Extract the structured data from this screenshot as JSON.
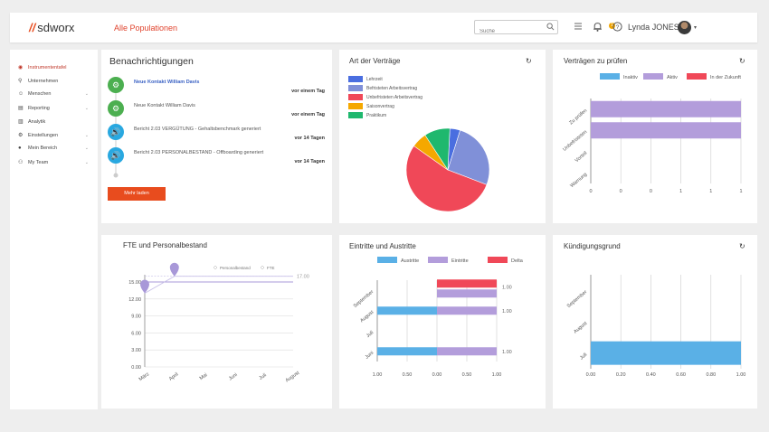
{
  "topbar": {
    "logo_text": "sdworx",
    "population": "Alle Populationen",
    "search_placeholder": "Suche",
    "badge_count": "1",
    "user_name": "Lynda JONES"
  },
  "sidebar": {
    "items": [
      {
        "label": "Instrumententafel",
        "icon": "dashboard-icon",
        "active": true,
        "chevron": false
      },
      {
        "label": "Unternehmen",
        "icon": "location-pin-icon",
        "active": false,
        "chevron": false
      },
      {
        "label": "Menschen",
        "icon": "people-icon",
        "active": false,
        "chevron": true
      },
      {
        "label": "Reporting",
        "icon": "reporting-icon",
        "active": false,
        "chevron": true
      },
      {
        "label": "Analytik",
        "icon": "analytics-icon",
        "active": false,
        "chevron": false
      },
      {
        "label": "Einstellungen",
        "icon": "settings-icon",
        "active": false,
        "chevron": true
      },
      {
        "label": "Mein Bereich",
        "icon": "user-icon",
        "active": false,
        "chevron": true
      },
      {
        "label": "My Team",
        "icon": "team-icon",
        "active": false,
        "chevron": true
      }
    ]
  },
  "notifications": {
    "title": "Benachrichtigungen",
    "more_label": "Mehr laden",
    "items": [
      {
        "text": "Neue Kontakt William Davis",
        "time": "vor einem Tag",
        "icon": "gear-icon",
        "color": "#4caf50",
        "link": true
      },
      {
        "text": "Neue Kontakt William Davis",
        "time": "vor einem Tag",
        "icon": "gear-icon",
        "color": "#4caf50",
        "link": false
      },
      {
        "text": "Bericht 2.03 VERGÜTUNG - Gehaltsbenchmark generiert",
        "time": "vor 14 Tagen",
        "icon": "speaker-icon",
        "color": "#29a8e0",
        "link": false
      },
      {
        "text": "Bericht 2.03 PERSONALBESTAND - Offboarding generiert",
        "time": "vor 14 Tagen",
        "icon": "speaker-icon",
        "color": "#29a8e0",
        "link": false
      }
    ]
  },
  "charts": {
    "contracts": {
      "title": "Art der Verträge",
      "chart_data": {
        "type": "pie",
        "legend_position": "top-left",
        "slices": [
          {
            "label": "Lehrzeit",
            "value": 4,
            "color": "#4a6ee0"
          },
          {
            "label": "Befristeten Arbeitsvertrag",
            "value": 26,
            "color": "#8090d8"
          },
          {
            "label": "Unbefristeten Arbeitsvertrag",
            "value": 54,
            "color": "#f04858"
          },
          {
            "label": "Saisonvertrag",
            "value": 6,
            "color": "#f5a800"
          },
          {
            "label": "Praktikum",
            "value": 10,
            "color": "#1fb86e"
          }
        ]
      }
    },
    "review": {
      "title": "Verträgen zu prüfen",
      "chart_data": {
        "type": "bar",
        "orientation": "horizontal",
        "stacked": true,
        "legend_position": "top",
        "categories": [
          "Zu prüfen",
          "Unbefristeten",
          "Vorteil",
          "Warnung"
        ],
        "series": [
          {
            "name": "Inaktiv",
            "color": "#5ab0e6",
            "values": [
              0,
              0,
              0,
              0
            ]
          },
          {
            "name": "Aktiv",
            "color": "#b39ddb",
            "values": [
              1,
              1,
              0,
              0
            ]
          },
          {
            "name": "In der Zukunft",
            "color": "#f04858",
            "values": [
              0,
              0,
              0,
              0
            ]
          }
        ],
        "xlim": [
          0,
          1
        ],
        "xticks": [
          "0",
          "0",
          "0",
          "1",
          "1",
          "1"
        ]
      }
    },
    "fte": {
      "title": "FTE und Personalbestand",
      "chart_data": {
        "type": "line",
        "legend_position": "top-right",
        "categories": [
          "März",
          "April",
          "Mai",
          "Juni",
          "Juli",
          "August"
        ],
        "series": [
          {
            "name": "Personalbestand",
            "color": "#a898d8",
            "values": [
              15,
              15,
              15,
              15,
              15,
              15
            ]
          },
          {
            "name": "FTE",
            "color": "#c8c0e8",
            "values": [
              13,
              16,
              16,
              16,
              16,
              16
            ]
          }
        ],
        "ylim": [
          0,
          15
        ],
        "yticks": [
          "0.00",
          "3.00",
          "6.00",
          "9.00",
          "12.00",
          "15.00"
        ],
        "reference_label": "17.00"
      }
    },
    "entries": {
      "title": "Eintritte und Austritte",
      "chart_data": {
        "type": "bar",
        "orientation": "horizontal",
        "legend_position": "top",
        "categories": [
          "September",
          "August",
          "Juli",
          "Juni"
        ],
        "series": [
          {
            "name": "Austritte",
            "color": "#5ab0e6",
            "values": [
              0,
              1,
              0,
              1
            ]
          },
          {
            "name": "Eintritte",
            "color": "#b39ddb",
            "values": [
              1,
              1,
              0,
              1
            ]
          },
          {
            "name": "Delta",
            "color": "#f04858",
            "values": [
              1,
              0,
              0,
              0
            ]
          }
        ],
        "value_labels": [
          "1.00",
          "1.00",
          "",
          "1.00"
        ],
        "xticks": [
          "1.00",
          "0.50",
          "0.00",
          "0.50",
          "1.00"
        ]
      }
    },
    "termination": {
      "title": "Kündigungsgrund",
      "chart_data": {
        "type": "bar",
        "orientation": "horizontal",
        "categories": [
          "September",
          "August",
          "Juli"
        ],
        "series": [
          {
            "color": "#5ab0e6",
            "values": [
              0,
              0,
              1
            ]
          }
        ],
        "xlim": [
          0,
          1
        ],
        "xticks": [
          "0.00",
          "0.20",
          "0.40",
          "0.60",
          "0.80",
          "1.00"
        ]
      }
    }
  }
}
